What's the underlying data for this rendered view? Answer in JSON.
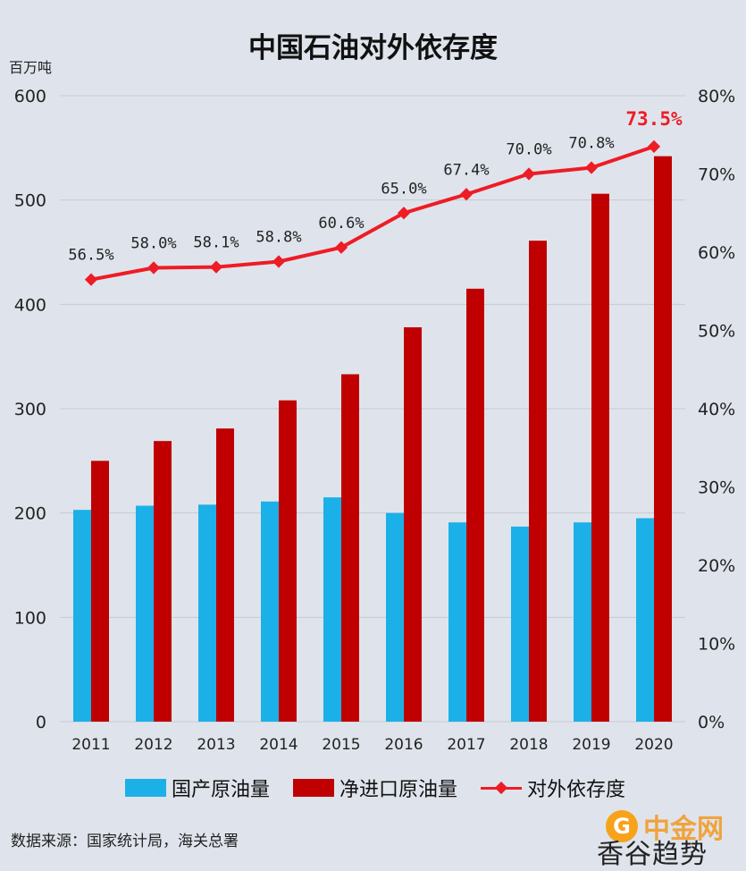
{
  "chart_data": {
    "type": "bar",
    "title": "中国石油对外依存度",
    "y_unit_label": "百万吨",
    "categories": [
      "2011",
      "2012",
      "2013",
      "2014",
      "2015",
      "2016",
      "2017",
      "2018",
      "2019",
      "2020"
    ],
    "series": [
      {
        "name": "国产原油量",
        "type": "bar",
        "axis": "left",
        "color": "#1cb0e8",
        "values": [
          203,
          207,
          208,
          211,
          215,
          200,
          191,
          187,
          191,
          195
        ]
      },
      {
        "name": "净进口原油量",
        "type": "bar",
        "axis": "left",
        "color": "#c00000",
        "values": [
          250,
          269,
          281,
          308,
          333,
          378,
          415,
          461,
          506,
          542
        ]
      },
      {
        "name": "对外依存度",
        "type": "line",
        "axis": "right",
        "color": "#ee1c25",
        "values": [
          56.5,
          58.0,
          58.1,
          58.8,
          60.6,
          65.0,
          67.4,
          70.0,
          70.8,
          73.5
        ],
        "labels": [
          "56.5%",
          "58.0%",
          "58.1%",
          "58.8%",
          "60.6%",
          "65.0%",
          "67.4%",
          "70.0%",
          "70.8%",
          "73.5%"
        ]
      }
    ],
    "ylim_left": [
      0,
      600
    ],
    "ylim_right": [
      0,
      80
    ],
    "left_ticks": [
      "0",
      "100",
      "200",
      "300",
      "400",
      "500",
      "600"
    ],
    "right_ticks": [
      "0%",
      "10%",
      "20%",
      "30%",
      "40%",
      "50%",
      "60%",
      "70%",
      "80%"
    ],
    "grid": true,
    "legend_placement": "bottom"
  },
  "source_text": "数据来源：国家统计局，海关总署",
  "watermark": {
    "brand": "中金网",
    "name": "香谷趋势"
  }
}
